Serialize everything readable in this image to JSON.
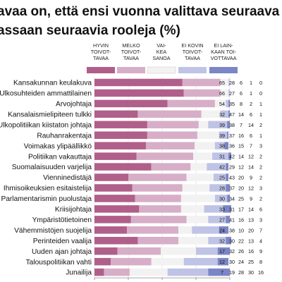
{
  "title_lines": [
    "avaa on, että ensi vuonna valittava seuraava tasavall",
    "assaan seuraavia rooleja (%)"
  ],
  "legend": [
    {
      "lines": [
        "HYVIN",
        "TOIVOT-",
        "TAVAA"
      ],
      "color": "#b05f8a"
    },
    {
      "lines": [
        "MELKO",
        "TOIVOT-",
        "TAVAA"
      ],
      "color": "#d7aec7"
    },
    {
      "lines": [
        "VAI-",
        "KEA",
        "SANOA"
      ],
      "color": "#f2f2f2"
    },
    {
      "lines": [
        "EI KOVIN",
        "TOIVOT-",
        "TAVAA"
      ],
      "color": "#bfc3e5"
    },
    {
      "lines": [
        "EI LAIN-",
        "KAAN TOI-",
        "VOTTAVAA"
      ],
      "color": "#7b86c6"
    }
  ],
  "chart_data": {
    "type": "bar",
    "stacked": true,
    "orientation": "horizontal",
    "categories": [
      "Kansakunnan keulakuva",
      "Ulkosuhteiden ammattilainen",
      "Arvojohtaja",
      "Kansalaismielipiteen tulkki",
      "Ulkopolitiikan kiistaton johtaja",
      "Rauhanrakentaja",
      "Voimakas ylipäällikkö",
      "Politiikan vakauttaja",
      "Suomalaisuuden varjelija",
      "Vienninedistäjä",
      "Ihmisoikeuksien esitaistelija",
      "Parlamentarismin puolustaja",
      "Kriisijohtaja",
      "Ympäristötietoinen",
      "Vähemmistöjen suojelija",
      "Perinteiden vaalija",
      "Uuden ajan johtaja",
      "Talouspolitiikan vahti",
      "Junailija"
    ],
    "series": [
      {
        "name": "HYVIN TOIVOTTAVAA",
        "values": [
          65,
          66,
          54,
          32,
          39,
          39,
          38,
          31,
          42,
          25,
          28,
          30,
          33,
          27,
          24,
          32,
          17,
          12,
          7
        ]
      },
      {
        "name": "MELKO TOIVOTTAVAA",
        "values": [
          28,
          27,
          35,
          47,
          38,
          37,
          36,
          42,
          29,
          43,
          37,
          34,
          31,
          41,
          38,
          30,
          32,
          30,
          19
        ]
      },
      {
        "name": "VAIKEA SANOA",
        "values": [
          6,
          6,
          8,
          14,
          7,
          16,
          15,
          14,
          12,
          20,
          20,
          25,
          17,
          16,
          10,
          22,
          26,
          24,
          28
        ]
      },
      {
        "name": "EI KOVIN TOIVOTTAVAA",
        "values": [
          1,
          1,
          2,
          6,
          14,
          6,
          7,
          12,
          14,
          9,
          12,
          9,
          14,
          13,
          20,
          13,
          16,
          25,
          30
        ]
      },
      {
        "name": "EI LAINKAAN TOIVOTTAVAA",
        "values": [
          0,
          0,
          1,
          1,
          2,
          1,
          3,
          2,
          2,
          2,
          3,
          2,
          6,
          3,
          7,
          4,
          9,
          8,
          16
        ]
      }
    ],
    "xticks": [
      0,
      25,
      50,
      75,
      100
    ],
    "xlim": [
      0,
      100
    ]
  }
}
